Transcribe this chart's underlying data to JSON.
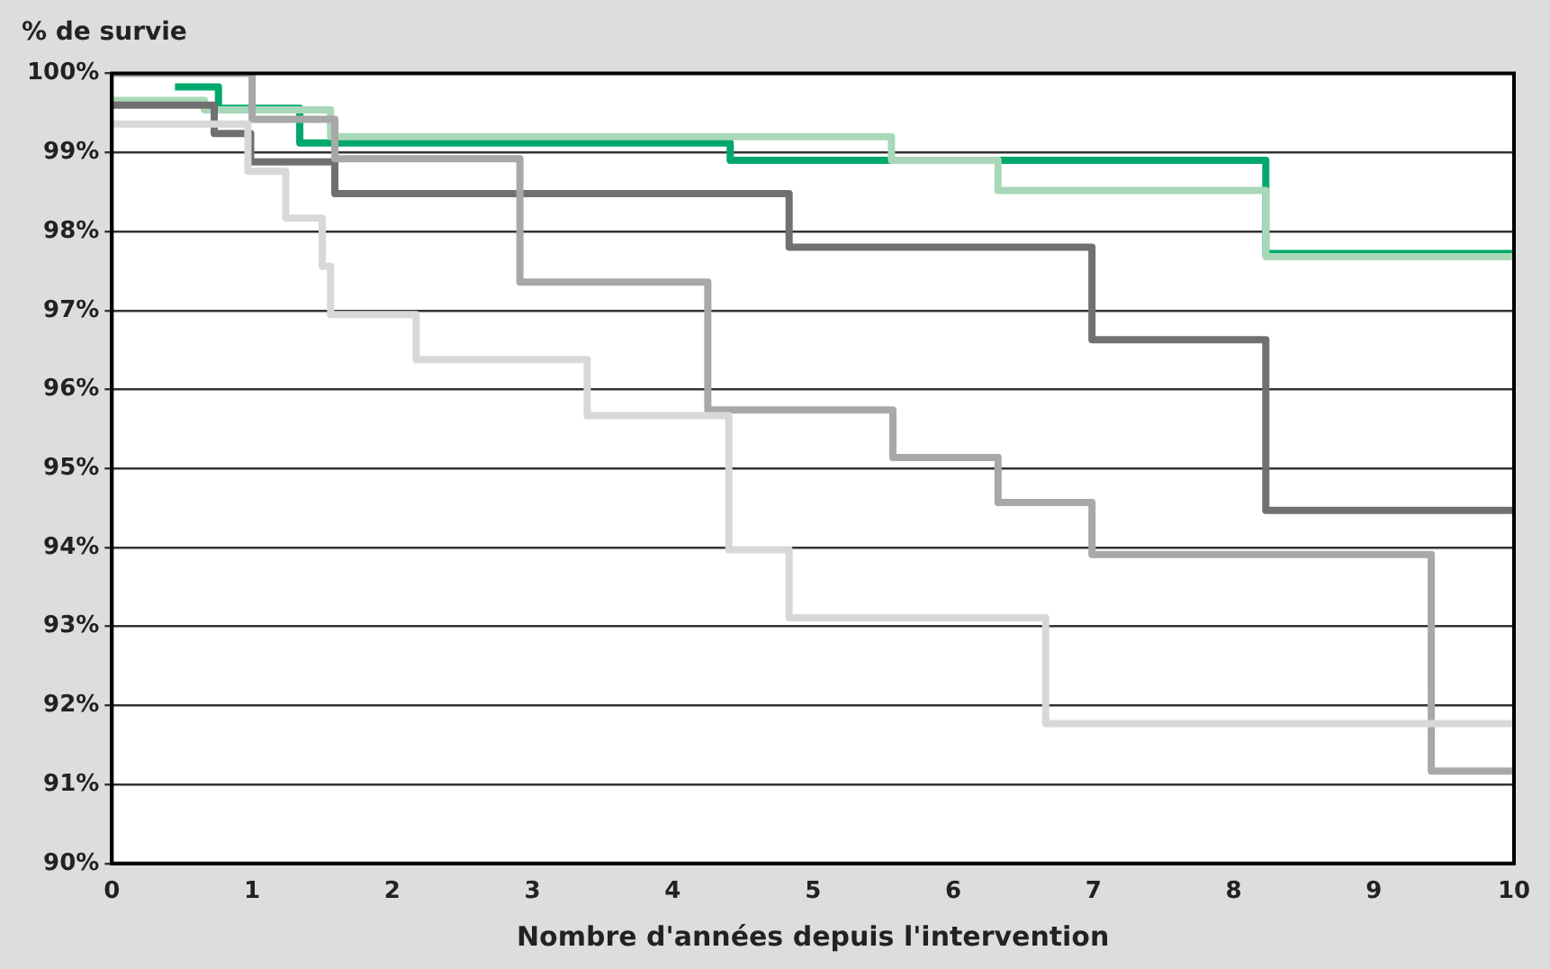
{
  "chart_data": {
    "type": "step",
    "ylabel": "% de survie",
    "xlabel": "Nombre d'années depuis l'intervention",
    "xlim": [
      0,
      10
    ],
    "xticks": [
      0,
      1,
      2,
      3,
      4,
      5,
      6,
      7,
      8,
      9,
      10
    ],
    "ylim": [
      90,
      100
    ],
    "yticks": [
      {
        "value": 90,
        "label": "90%"
      },
      {
        "value": 91,
        "label": "91%"
      },
      {
        "value": 92,
        "label": "92%"
      },
      {
        "value": 93,
        "label": "93%"
      },
      {
        "value": 94,
        "label": "94%"
      },
      {
        "value": 95,
        "label": "95%"
      },
      {
        "value": 96,
        "label": "96%"
      },
      {
        "value": 97,
        "label": "97%"
      },
      {
        "value": 98,
        "label": "98%"
      },
      {
        "value": 99,
        "label": "99%"
      },
      {
        "value": 100,
        "label": "100%"
      }
    ],
    "grid": "y",
    "legend": false,
    "marker": "none",
    "line_style": "solid",
    "series": [
      {
        "color": "#d8d8d8",
        "x": [
          0,
          0.97,
          1.24,
          1.5,
          1.56,
          2.17,
          3.39,
          4.4,
          4.83,
          6.66,
          10
        ],
        "values": [
          99.36,
          98.76,
          98.17,
          97.56,
          96.95,
          96.38,
          95.67,
          93.97,
          93.11,
          91.77,
          91.77
        ]
      },
      {
        "color": "#a8a8a8",
        "x": [
          0,
          1.0,
          1.59,
          2.91,
          4.25,
          5.57,
          6.32,
          6.99,
          9.41,
          10
        ],
        "values": [
          100,
          99.42,
          98.92,
          97.36,
          95.74,
          95.14,
          94.57,
          93.91,
          91.17,
          91.17
        ]
      },
      {
        "color": "#707070",
        "x": [
          0,
          0.73,
          0.99,
          1.59,
          4.83,
          6.99,
          8.23,
          10
        ],
        "values": [
          99.6,
          99.24,
          98.88,
          98.48,
          97.8,
          96.63,
          94.47,
          94.47
        ]
      },
      {
        "color": "#a8d8b8",
        "x": [
          0,
          0.66,
          1.56,
          5.56,
          6.32,
          8.23,
          10
        ],
        "values": [
          99.66,
          99.54,
          99.2,
          98.9,
          98.52,
          97.68,
          97.68
        ]
      },
      {
        "color": "#00a86b",
        "x": [
          0.45,
          0.76,
          1.34,
          4.41,
          8.23,
          10
        ],
        "values": [
          99.83,
          99.56,
          99.12,
          98.9,
          97.72,
          97.72
        ]
      }
    ]
  }
}
